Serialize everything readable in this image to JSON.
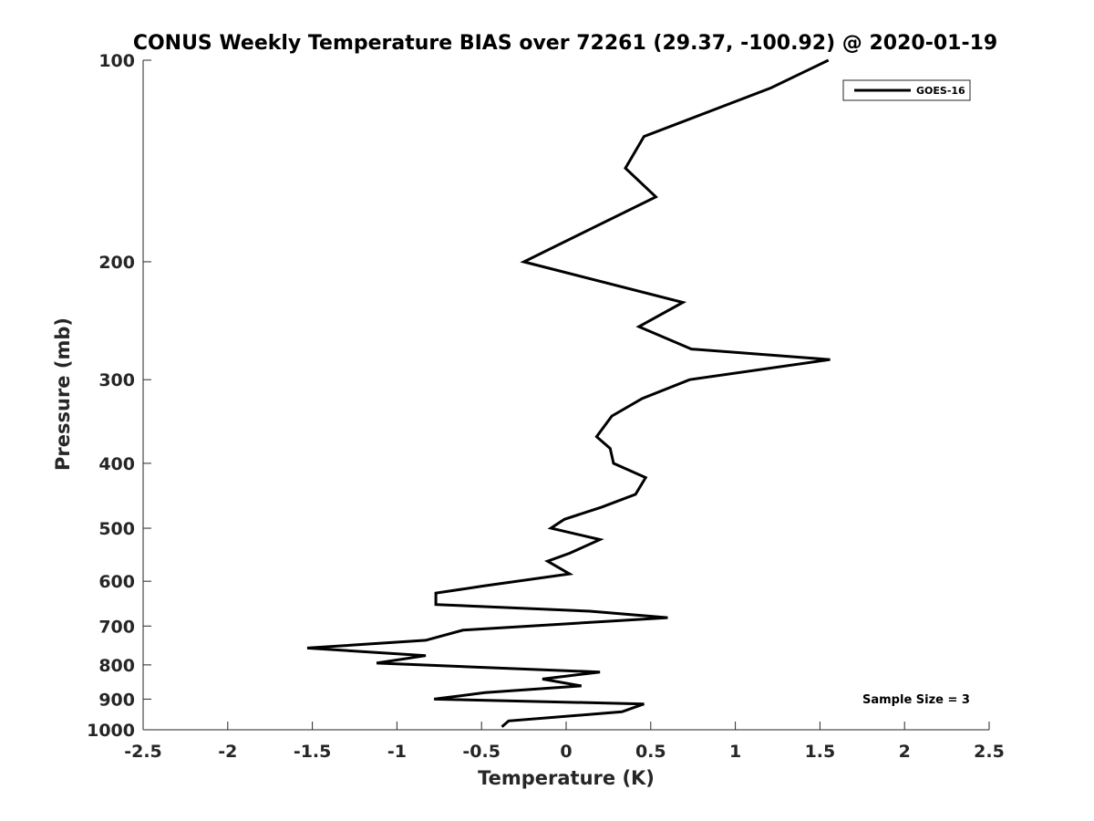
{
  "chart_data": {
    "type": "line",
    "title": "CONUS Weekly Temperature BIAS over 72261 (29.37, -100.92) @ 2020-01-19",
    "xlabel": "Temperature (K)",
    "ylabel": "Pressure (mb)",
    "xlim": [
      -2.5,
      2.5
    ],
    "ylim": [
      1000,
      100
    ],
    "yscale": "log",
    "grid": false,
    "legend_position": "top-right",
    "x_ticks": [
      -2.5,
      -2,
      -1.5,
      -1,
      -0.5,
      0,
      0.5,
      1,
      1.5,
      2,
      2.5
    ],
    "x_tick_labels": [
      "-2.5",
      "-2",
      "-1.5",
      "-1",
      "-0.5",
      "0",
      "0.5",
      "1",
      "1.5",
      "2",
      "2.5"
    ],
    "y_ticks": [
      100,
      200,
      300,
      400,
      500,
      600,
      700,
      800,
      900,
      1000
    ],
    "y_tick_labels": [
      "100",
      "200",
      "300",
      "400",
      "500",
      "600",
      "700",
      "800",
      "900",
      "1000"
    ],
    "series": [
      {
        "name": "GOES-16",
        "color": "#000000",
        "x": [
          1.55,
          1.21,
          0.46,
          0.35,
          0.53,
          -0.25,
          0.69,
          0.43,
          0.74,
          1.56,
          0.73,
          0.45,
          0.27,
          0.18,
          0.26,
          0.28,
          0.47,
          0.41,
          0.21,
          -0.01,
          -0.09,
          0.2,
          0.02,
          -0.11,
          0.02,
          -0.49,
          -0.77,
          -0.77,
          0.14,
          0.6,
          -0.61,
          -0.83,
          -1.53,
          -0.83,
          -1.12,
          0.2,
          -0.14,
          0.09,
          -0.48,
          -0.78,
          0.46,
          0.33,
          -0.34,
          -0.38
        ],
        "y": [
          100,
          110,
          130,
          145,
          160,
          200,
          230,
          250,
          270,
          280,
          300,
          320,
          340,
          365,
          380,
          400,
          420,
          445,
          465,
          485,
          500,
          520,
          545,
          560,
          585,
          610,
          625,
          650,
          665,
          680,
          710,
          735,
          755,
          775,
          795,
          820,
          840,
          860,
          880,
          900,
          915,
          940,
          970,
          990
        ]
      }
    ],
    "legend": [
      "GOES-16"
    ],
    "annotations": [
      "Sample Size = 3"
    ]
  }
}
